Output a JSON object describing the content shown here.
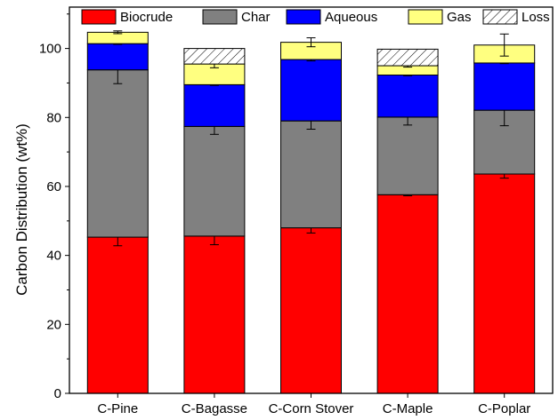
{
  "chart_data": {
    "type": "bar",
    "stacked": true,
    "title": "",
    "xlabel": "",
    "ylabel": "Carbon Distribution (wt%)",
    "ylim": [
      0,
      112
    ],
    "yticks": [
      0,
      20,
      40,
      60,
      80,
      100
    ],
    "grid": false,
    "legend_position": "top",
    "categories": [
      "C-Pine",
      "C-Bagasse",
      "C-Corn Stover",
      "C-Maple",
      "C-Poplar"
    ],
    "series": [
      {
        "name": "Biocrude",
        "color": "#ff0000",
        "pattern": "solid",
        "values": [
          45.3,
          45.6,
          48.0,
          57.6,
          63.6
        ],
        "errors": [
          2.5,
          2.5,
          1.5,
          0.3,
          1.2
        ]
      },
      {
        "name": "Char",
        "color": "#808080",
        "pattern": "solid",
        "values": [
          48.5,
          31.8,
          31.0,
          22.5,
          18.5
        ],
        "errors": [
          4.0,
          2.3,
          2.4,
          2.3,
          4.5
        ]
      },
      {
        "name": "Aqueous",
        "color": "#0000ff",
        "pattern": "solid",
        "values": [
          7.6,
          12.1,
          17.8,
          12.2,
          13.7
        ],
        "errors": [
          0.2,
          0.2,
          0.4,
          0.2,
          0.2
        ]
      },
      {
        "name": "Gas",
        "color": "#ffff80",
        "pattern": "solid",
        "values": [
          3.3,
          6.0,
          5.0,
          2.7,
          5.2
        ],
        "errors": [
          0.4,
          1.1,
          1.3,
          0.4,
          3.2
        ]
      },
      {
        "name": "Loss",
        "color": "#ffffff",
        "pattern": "hatch",
        "values": [
          0,
          4.5,
          0,
          4.8,
          0
        ],
        "errors": [
          0,
          0,
          0,
          0,
          0
        ]
      }
    ]
  }
}
